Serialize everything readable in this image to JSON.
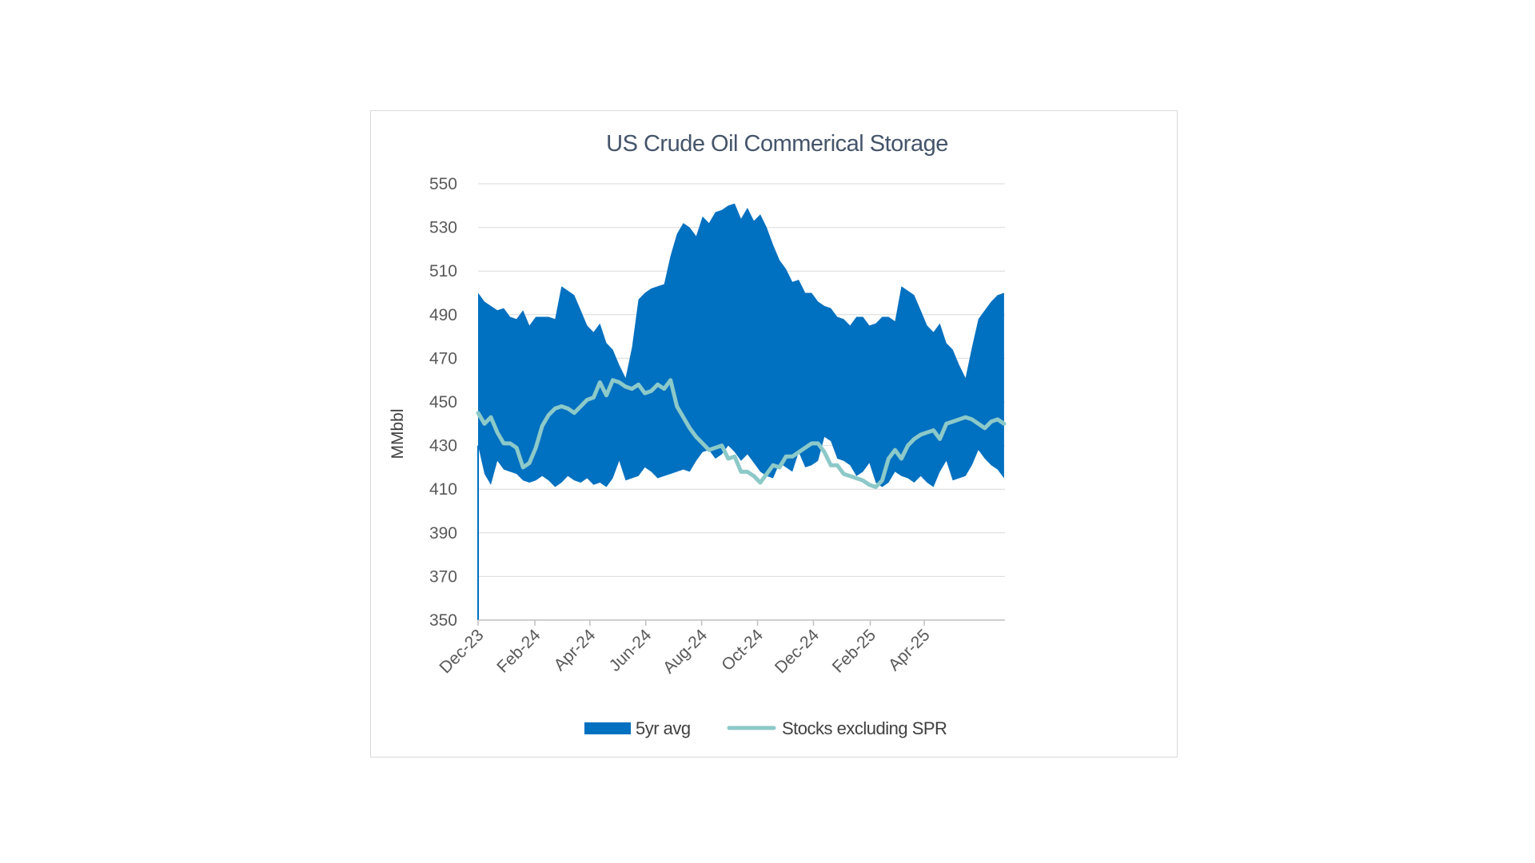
{
  "chart_data": {
    "type": "area",
    "title": "US Crude Oil Commerical Storage",
    "ylabel": "MMbbl",
    "ylim": [
      350,
      550
    ],
    "yticks": [
      350,
      370,
      390,
      410,
      430,
      450,
      470,
      490,
      510,
      530,
      550
    ],
    "xlim": [
      "2023-12-01",
      "2025-06-28"
    ],
    "xticks": [
      "Dec-23",
      "Feb-24",
      "Apr-24",
      "Jun-24",
      "Aug-24",
      "Oct-24",
      "Dec-24",
      "Feb-25",
      "Apr-25"
    ],
    "xtick_dates": [
      "2023-12-01",
      "2024-02-01",
      "2024-04-01",
      "2024-06-01",
      "2024-08-01",
      "2024-10-01",
      "2024-12-01",
      "2025-02-01",
      "2025-04-01"
    ],
    "grid": "horizontal",
    "legend_position": "bottom",
    "colors": {
      "band": "#0070c0",
      "stocks": "#8cc9c8"
    },
    "series": [
      {
        "name": "5yr avg",
        "kind": "band",
        "x": [
          "2023-12-01",
          "2023-12-08",
          "2023-12-15",
          "2023-12-22",
          "2023-12-29",
          "2024-01-05",
          "2024-01-12",
          "2024-01-19",
          "2024-01-26",
          "2024-02-02",
          "2024-02-09",
          "2024-02-16",
          "2024-02-23",
          "2024-03-01",
          "2024-03-08",
          "2024-03-15",
          "2024-03-22",
          "2024-03-29",
          "2024-04-05",
          "2024-04-12",
          "2024-04-19",
          "2024-04-26",
          "2024-05-03",
          "2024-05-10",
          "2024-05-17",
          "2024-05-24",
          "2024-05-31",
          "2024-06-07",
          "2024-06-14",
          "2024-06-21",
          "2024-06-28",
          "2024-07-05",
          "2024-07-12",
          "2024-07-19",
          "2024-07-26",
          "2024-08-02",
          "2024-08-09",
          "2024-08-16",
          "2024-08-23",
          "2024-08-30",
          "2024-09-06",
          "2024-09-13",
          "2024-09-20",
          "2024-09-27",
          "2024-10-04",
          "2024-10-11",
          "2024-10-18",
          "2024-10-25",
          "2024-11-01",
          "2024-11-08",
          "2024-11-15",
          "2024-11-22",
          "2024-11-29",
          "2024-12-06",
          "2024-12-13",
          "2024-12-20",
          "2024-12-27",
          "2025-01-03",
          "2025-01-10",
          "2025-01-17",
          "2025-01-24",
          "2025-01-31",
          "2025-02-07",
          "2025-02-14",
          "2025-02-21",
          "2025-02-28",
          "2025-03-07",
          "2025-03-14",
          "2025-03-21",
          "2025-03-28",
          "2025-04-04",
          "2025-04-11",
          "2025-04-18",
          "2025-04-25",
          "2025-05-02",
          "2025-05-09",
          "2025-05-16",
          "2025-05-23",
          "2025-05-30",
          "2025-06-06",
          "2025-06-13",
          "2025-06-20",
          "2025-06-27"
        ],
        "high": [
          500,
          496,
          494,
          492,
          493,
          489,
          488,
          492,
          485,
          489,
          489,
          489,
          488,
          503,
          501,
          499,
          492,
          485,
          482,
          486,
          477,
          474,
          467,
          461,
          475,
          497,
          500,
          502,
          503,
          504,
          517,
          527,
          532,
          530,
          526,
          535,
          532,
          537,
          538,
          540,
          541,
          534,
          539,
          533,
          536,
          530,
          522,
          515,
          511,
          505,
          506,
          500,
          500,
          496,
          494,
          493,
          489,
          488,
          485,
          489,
          489,
          485,
          486,
          489,
          489,
          487,
          503,
          501,
          499,
          492,
          485,
          482,
          486,
          477,
          474,
          467,
          461,
          475,
          488,
          492,
          496,
          499,
          500
        ],
        "low": [
          430,
          417,
          412,
          423,
          419,
          418,
          417,
          414,
          413,
          414,
          416,
          414,
          411,
          413,
          416,
          414,
          413,
          415,
          412,
          413,
          411,
          415,
          423,
          414,
          415,
          416,
          420,
          418,
          415,
          416,
          417,
          418,
          419,
          418,
          423,
          427,
          428,
          424,
          426,
          430,
          427,
          423,
          426,
          422,
          418,
          416,
          415,
          422,
          420,
          418,
          427,
          420,
          421,
          423,
          434,
          432,
          424,
          423,
          421,
          416,
          418,
          422,
          413,
          411,
          413,
          418,
          416,
          415,
          413,
          416,
          413,
          411,
          418,
          423,
          414,
          415,
          416,
          421,
          428,
          424,
          421,
          419,
          415
        ]
      },
      {
        "name": "Stocks excluding SPR",
        "kind": "line",
        "x": [
          "2023-12-01",
          "2023-12-08",
          "2023-12-15",
          "2023-12-22",
          "2023-12-29",
          "2024-01-05",
          "2024-01-12",
          "2024-01-19",
          "2024-01-26",
          "2024-02-02",
          "2024-02-09",
          "2024-02-16",
          "2024-02-23",
          "2024-03-01",
          "2024-03-08",
          "2024-03-15",
          "2024-03-22",
          "2024-03-29",
          "2024-04-05",
          "2024-04-12",
          "2024-04-19",
          "2024-04-26",
          "2024-05-03",
          "2024-05-10",
          "2024-05-17",
          "2024-05-24",
          "2024-05-31",
          "2024-06-07",
          "2024-06-14",
          "2024-06-21",
          "2024-06-28",
          "2024-07-05",
          "2024-07-12",
          "2024-07-19",
          "2024-07-26",
          "2024-08-02",
          "2024-08-09",
          "2024-08-16",
          "2024-08-23",
          "2024-08-30",
          "2024-09-06",
          "2024-09-13",
          "2024-09-20",
          "2024-09-27",
          "2024-10-04",
          "2024-10-11",
          "2024-10-18",
          "2024-10-25",
          "2024-11-01",
          "2024-11-08",
          "2024-11-15",
          "2024-11-22",
          "2024-11-29",
          "2024-12-06",
          "2024-12-13",
          "2024-12-20",
          "2024-12-27",
          "2025-01-03",
          "2025-01-10",
          "2025-01-17",
          "2025-01-24",
          "2025-01-31",
          "2025-02-07",
          "2025-02-14",
          "2025-02-21",
          "2025-02-28",
          "2025-03-07",
          "2025-03-14",
          "2025-03-21",
          "2025-03-28",
          "2025-04-04",
          "2025-04-11",
          "2025-04-18",
          "2025-04-25",
          "2025-05-02",
          "2025-05-09",
          "2025-05-16",
          "2025-05-23",
          "2025-05-30",
          "2025-06-06",
          "2025-06-13",
          "2025-06-20",
          "2025-06-27"
        ],
        "values": [
          445,
          440,
          443,
          436,
          431,
          431,
          429,
          420,
          422,
          429,
          439,
          444,
          447,
          448,
          447,
          445,
          448,
          451,
          452,
          459,
          453,
          460,
          459,
          457,
          456,
          458,
          454,
          455,
          458,
          456,
          460,
          448,
          443,
          438,
          434,
          431,
          428,
          429,
          430,
          424,
          425,
          418,
          418,
          416,
          413,
          417,
          421,
          420,
          425,
          425,
          427,
          429,
          431,
          431,
          427,
          421,
          421,
          417,
          416,
          415,
          414,
          412,
          411,
          414,
          424,
          428,
          424,
          430,
          433,
          435,
          436,
          437,
          433,
          440,
          441,
          442,
          443,
          442,
          440,
          438,
          441,
          442,
          440
        ]
      }
    ]
  }
}
